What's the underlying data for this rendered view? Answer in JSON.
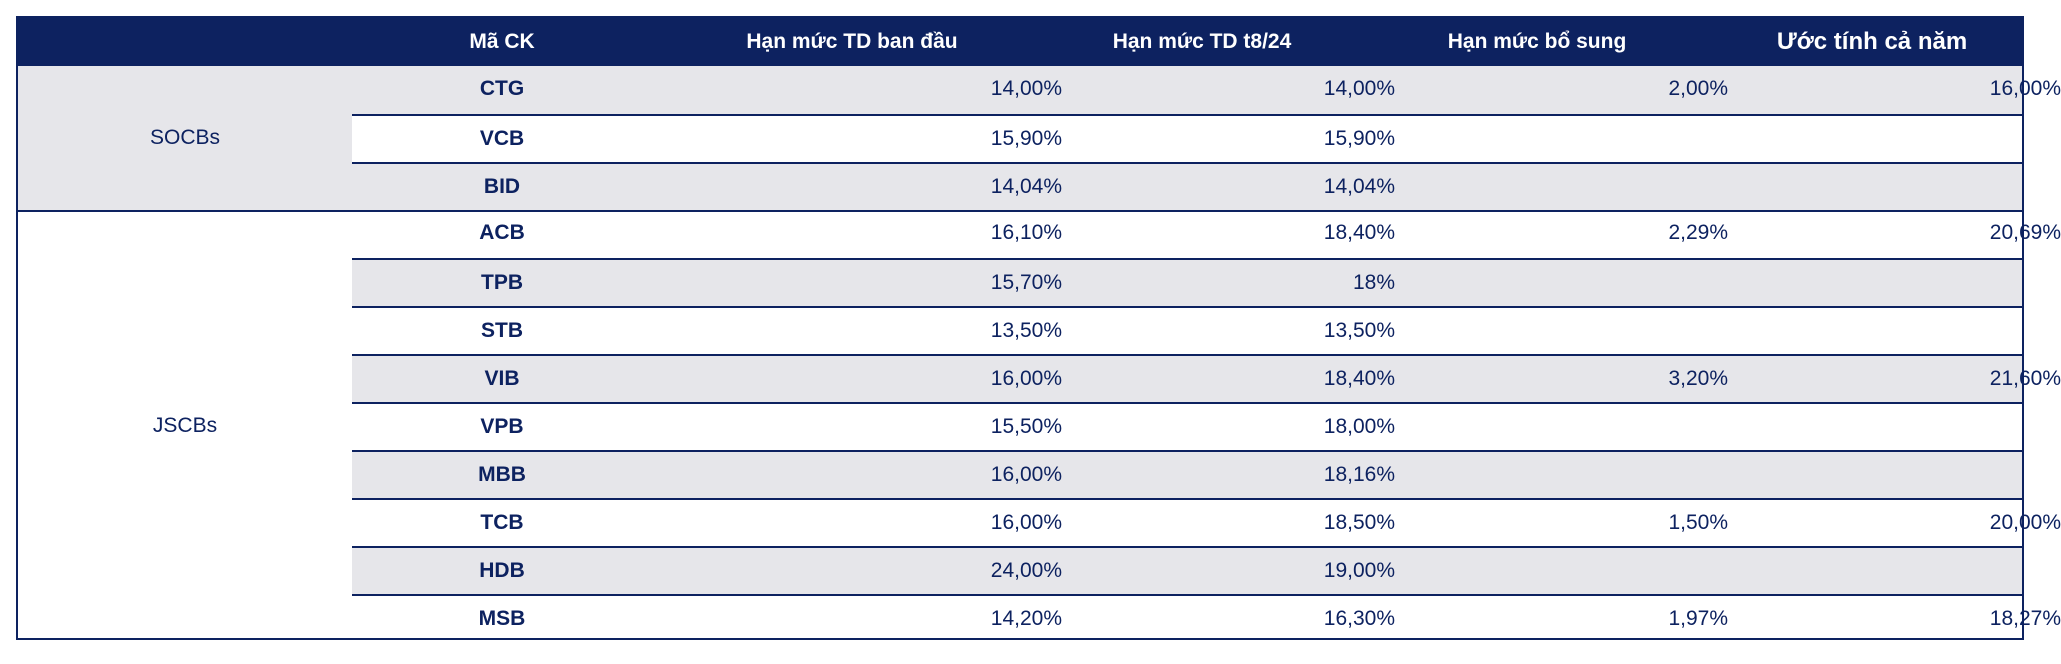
{
  "headers": {
    "group": "",
    "code": "Mã CK",
    "initial_limit": "Hạn mức TD ban đầu",
    "aug24_limit": "Hạn mức TD t8/24",
    "additional_limit": "Hạn mức bổ sung",
    "full_year_estimate": "Ước tính cả năm"
  },
  "groups": [
    {
      "name": "SOCBs",
      "rows": [
        {
          "code": "CTG",
          "initial": "14,00%",
          "aug24": "14,00%",
          "additional": "2,00%",
          "estimate": "16,00%"
        },
        {
          "code": "VCB",
          "initial": "15,90%",
          "aug24": "15,90%",
          "additional": "",
          "estimate": ""
        },
        {
          "code": "BID",
          "initial": "14,04%",
          "aug24": "14,04%",
          "additional": "",
          "estimate": ""
        }
      ]
    },
    {
      "name": "JSCBs",
      "rows": [
        {
          "code": "ACB",
          "initial": "16,10%",
          "aug24": "18,40%",
          "additional": "2,29%",
          "estimate": "20,69%"
        },
        {
          "code": "TPB",
          "initial": "15,70%",
          "aug24": "18%",
          "additional": "",
          "estimate": ""
        },
        {
          "code": "STB",
          "initial": "13,50%",
          "aug24": "13,50%",
          "additional": "",
          "estimate": ""
        },
        {
          "code": "VIB",
          "initial": "16,00%",
          "aug24": "18,40%",
          "additional": "3,20%",
          "estimate": "21,60%"
        },
        {
          "code": "VPB",
          "initial": "15,50%",
          "aug24": "18,00%",
          "additional": "",
          "estimate": ""
        },
        {
          "code": "MBB",
          "initial": "16,00%",
          "aug24": "18,16%",
          "additional": "",
          "estimate": ""
        },
        {
          "code": "TCB",
          "initial": "16,00%",
          "aug24": "18,50%",
          "additional": "1,50%",
          "estimate": "20,00%"
        },
        {
          "code": "HDB",
          "initial": "24,00%",
          "aug24": "19,00%",
          "additional": "",
          "estimate": ""
        },
        {
          "code": "MSB",
          "initial": "14,20%",
          "aug24": "16,30%",
          "additional": "1,97%",
          "estimate": "18,27%"
        }
      ]
    }
  ],
  "colors": {
    "header_bg": "#0d2260",
    "shade": "#e6e6ea",
    "text": "#0d2260"
  }
}
